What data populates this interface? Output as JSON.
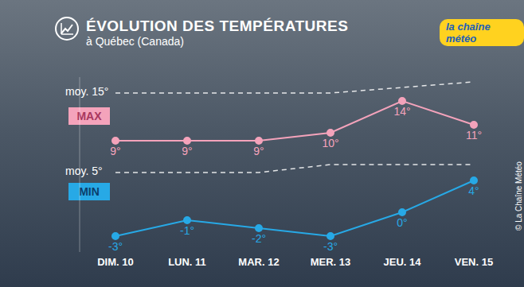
{
  "chart_data": {
    "type": "line",
    "title": "ÉVOLUTION DES TEMPÉRATURES",
    "subtitle": "à Québec (Canada)",
    "brand": "la chaîne météo",
    "source": "© La Chaîne Météo",
    "categories": [
      "DIM. 10",
      "LUN. 11",
      "MAR. 12",
      "MER. 13",
      "JEU. 14",
      "VEN. 15"
    ],
    "series": [
      {
        "name": "MAX",
        "color": "#f4a3bb",
        "marker": "circle",
        "values": [
          9,
          9,
          9,
          10,
          14,
          11
        ],
        "value_labels": [
          "9°",
          "9°",
          "9°",
          "10°",
          "14°",
          "11°"
        ]
      },
      {
        "name": "MIN",
        "color": "#27a9e6",
        "marker": "circle",
        "values": [
          -3,
          -1,
          -2,
          -3,
          0,
          4
        ],
        "value_labels": [
          "-3°",
          "-1°",
          "-2°",
          "-3°",
          "0°",
          "4°"
        ]
      }
    ],
    "averages": [
      {
        "label": "moy. 15°",
        "color": "#ffffff",
        "line_style": "dashed",
        "values": [
          15,
          15,
          15,
          15,
          15.7,
          16.4
        ]
      },
      {
        "label": "moy. 5°",
        "color": "#ffffff",
        "line_style": "dashed",
        "values": [
          5,
          5,
          5,
          6,
          6,
          6
        ]
      }
    ],
    "ylim": [
      -5,
      17
    ],
    "data_labels": true,
    "tick_labels": "x",
    "grid": false
  }
}
